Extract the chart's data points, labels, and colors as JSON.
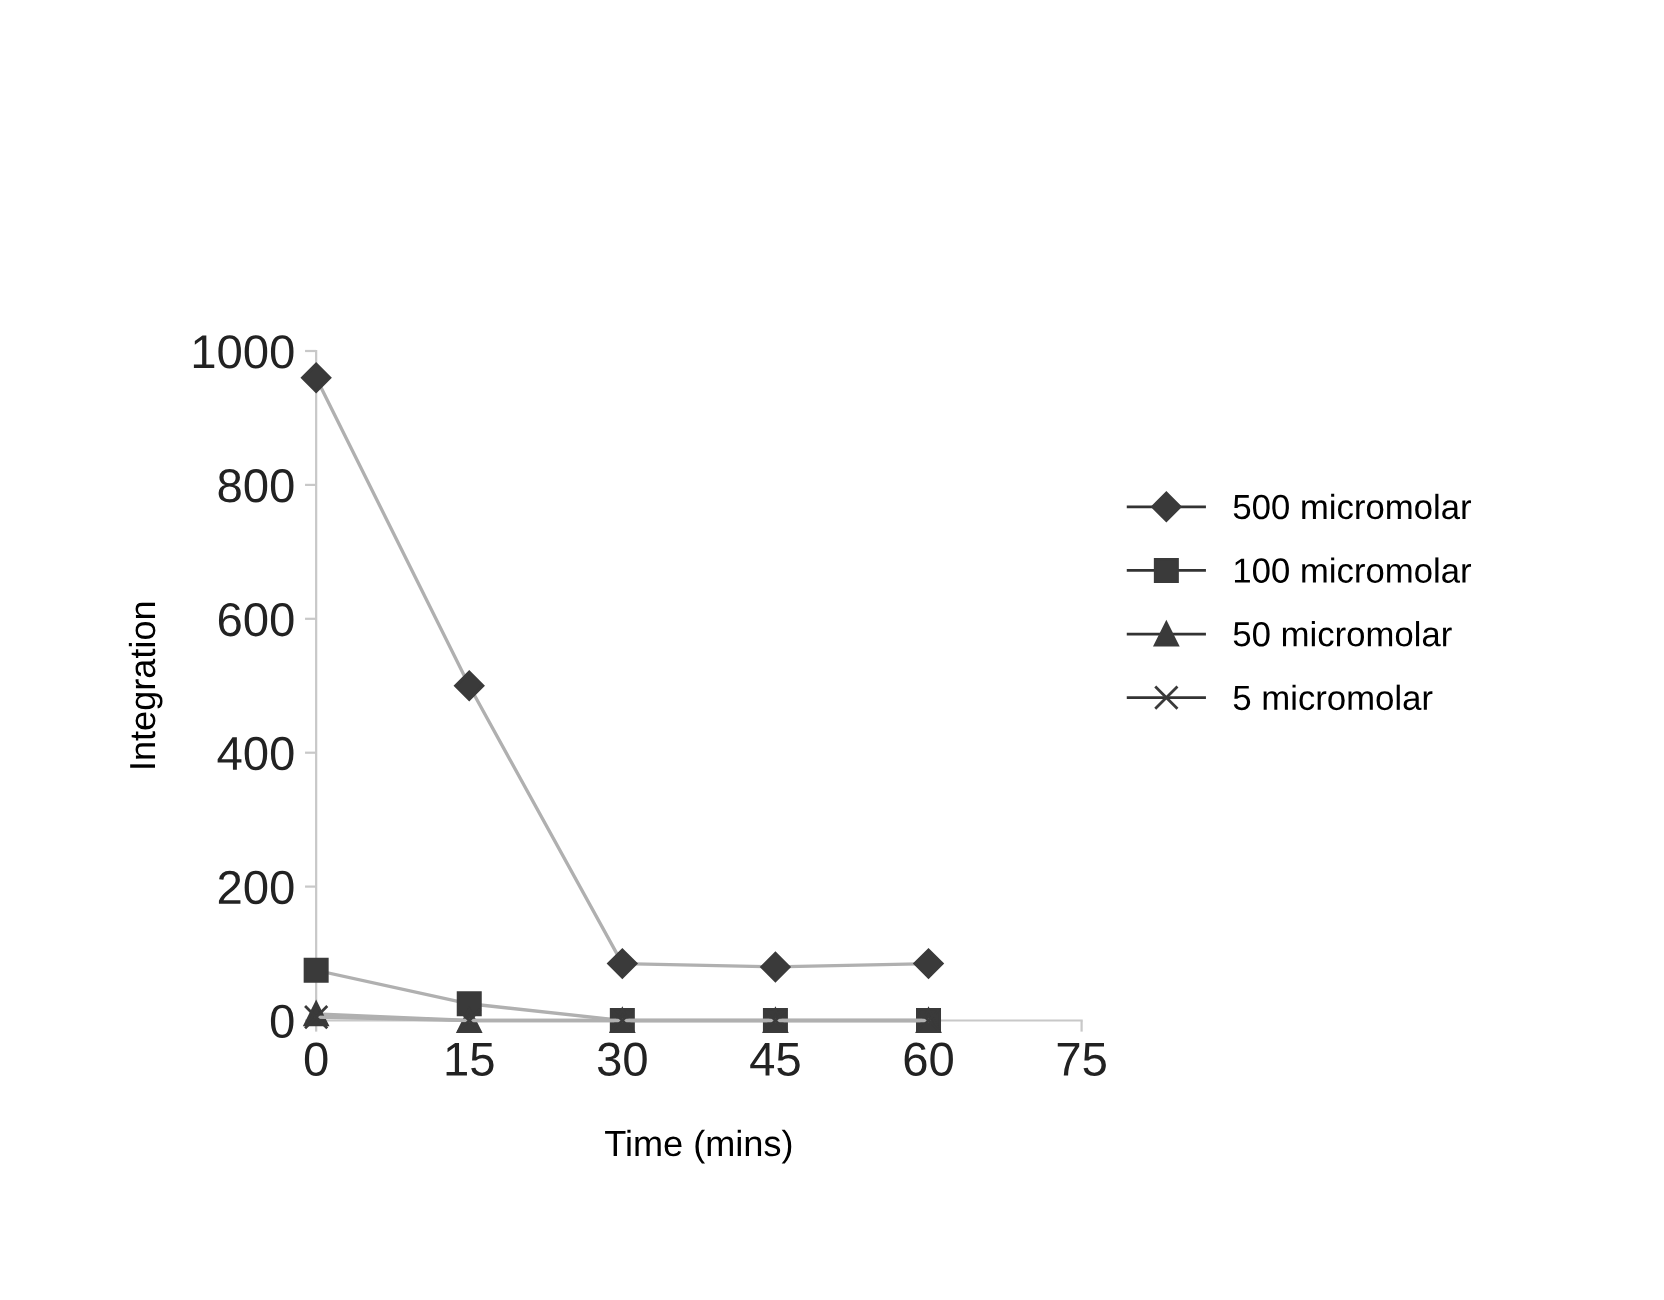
{
  "chart_data": {
    "type": "line",
    "xlabel": "Time (mins)",
    "ylabel": "Integration",
    "x": [
      0,
      15,
      30,
      45,
      60
    ],
    "series": [
      {
        "name": "500 micromolar",
        "color": "#3a3a3a",
        "marker": "diamond",
        "values": [
          960,
          500,
          85,
          80,
          85
        ]
      },
      {
        "name": "100 micromolar",
        "color": "#3a3a3a",
        "marker": "square",
        "values": [
          75,
          25,
          0,
          0,
          0
        ]
      },
      {
        "name": "50 micromolar",
        "color": "#3a3a3a",
        "marker": "triangle",
        "values": [
          10,
          0,
          0,
          0,
          0
        ]
      },
      {
        "name": "5 micromolar",
        "color": "#3a3a3a",
        "marker": "cross",
        "values": [
          5,
          0,
          0,
          0,
          0
        ]
      }
    ],
    "xlim": [
      0,
      75
    ],
    "xticks": [
      0,
      15,
      30,
      45,
      60,
      75
    ],
    "ylim": [
      0,
      1000
    ],
    "yticks": [
      0,
      200,
      400,
      600,
      800,
      1000
    ],
    "grid": false,
    "legend": "right",
    "line_style": "solid"
  }
}
